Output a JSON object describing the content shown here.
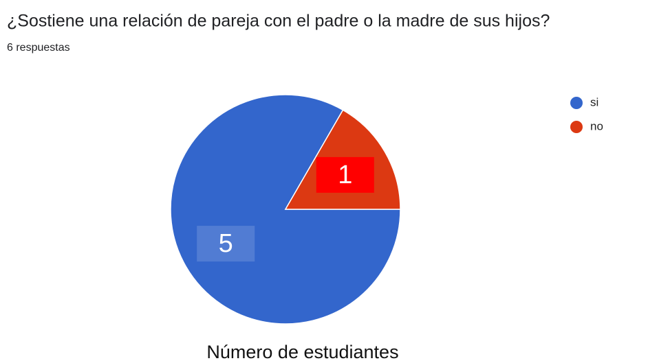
{
  "chart_data": {
    "type": "pie",
    "title": "¿Sostiene una relación de pareja con el padre o la madre de sus hijos?",
    "subtitle": "6 respuestas",
    "xlabel": "Número de estudiantes",
    "categories": [
      "si",
      "no"
    ],
    "values": [
      5,
      1
    ],
    "colors": [
      "#3366cc",
      "#dc3912"
    ],
    "legend": "top-right"
  }
}
